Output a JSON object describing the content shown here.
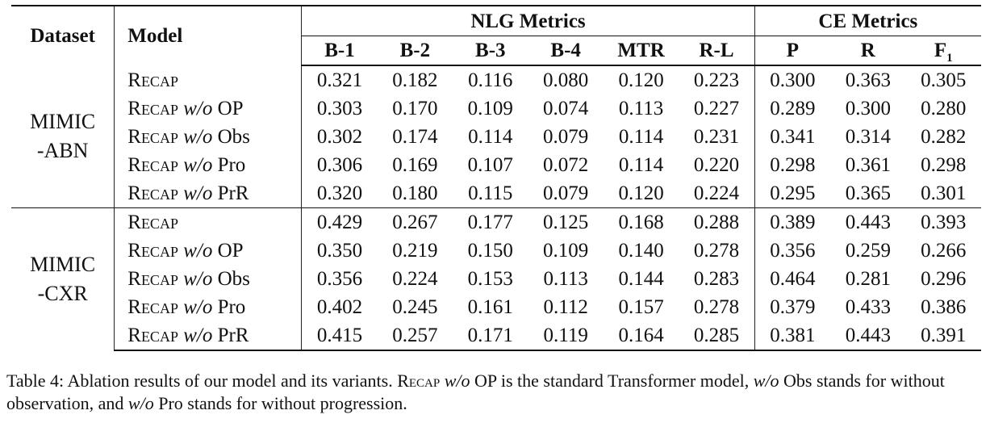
{
  "table": {
    "header": {
      "dataset": "Dataset",
      "model": "Model",
      "nlg_group": "NLG Metrics",
      "ce_group": "CE Metrics",
      "nlg_cols": [
        "B-1",
        "B-2",
        "B-3",
        "B-4",
        "MTR",
        "R-L"
      ],
      "ce_cols": [
        "P",
        "R"
      ],
      "f1_main": "F",
      "f1_sub": "1"
    },
    "groups": [
      {
        "dataset_line1": "MIMIC",
        "dataset_line2": "-ABN",
        "rows": [
          {
            "model": "Recap",
            "variant": "",
            "values": [
              "0.321",
              "0.182",
              "0.116",
              "0.080",
              "0.120",
              "0.223",
              "0.300",
              "0.363",
              "0.305"
            ]
          },
          {
            "model": "Recap",
            "variant": "OP",
            "values": [
              "0.303",
              "0.170",
              "0.109",
              "0.074",
              "0.113",
              "0.227",
              "0.289",
              "0.300",
              "0.280"
            ]
          },
          {
            "model": "Recap",
            "variant": "Obs",
            "values": [
              "0.302",
              "0.174",
              "0.114",
              "0.079",
              "0.114",
              "0.231",
              "0.341",
              "0.314",
              "0.282"
            ]
          },
          {
            "model": "Recap",
            "variant": "Pro",
            "values": [
              "0.306",
              "0.169",
              "0.107",
              "0.072",
              "0.114",
              "0.220",
              "0.298",
              "0.361",
              "0.298"
            ]
          },
          {
            "model": "Recap",
            "variant": "PrR",
            "values": [
              "0.320",
              "0.180",
              "0.115",
              "0.079",
              "0.120",
              "0.224",
              "0.295",
              "0.365",
              "0.301"
            ]
          }
        ]
      },
      {
        "dataset_line1": "MIMIC",
        "dataset_line2": "-CXR",
        "rows": [
          {
            "model": "Recap",
            "variant": "",
            "values": [
              "0.429",
              "0.267",
              "0.177",
              "0.125",
              "0.168",
              "0.288",
              "0.389",
              "0.443",
              "0.393"
            ]
          },
          {
            "model": "Recap",
            "variant": "OP",
            "values": [
              "0.350",
              "0.219",
              "0.150",
              "0.109",
              "0.140",
              "0.278",
              "0.356",
              "0.259",
              "0.266"
            ]
          },
          {
            "model": "Recap",
            "variant": "Obs",
            "values": [
              "0.356",
              "0.224",
              "0.153",
              "0.113",
              "0.144",
              "0.283",
              "0.464",
              "0.281",
              "0.296"
            ]
          },
          {
            "model": "Recap",
            "variant": "Pro",
            "values": [
              "0.402",
              "0.245",
              "0.161",
              "0.112",
              "0.157",
              "0.278",
              "0.379",
              "0.433",
              "0.386"
            ]
          },
          {
            "model": "Recap",
            "variant": "PrR",
            "values": [
              "0.415",
              "0.257",
              "0.171",
              "0.119",
              "0.164",
              "0.285",
              "0.381",
              "0.443",
              "0.391"
            ]
          }
        ]
      }
    ],
    "wo_label": "w/o"
  },
  "caption": {
    "label": "Table 4:",
    "part1": "Ablation results of our model and its variants.",
    "model_name": "Recap",
    "wo1": "w/o",
    "part2": "OP is the standard Transformer model,",
    "wo2": "w/o",
    "part3": "Obs stands for without observation, and",
    "wo3": "w/o",
    "part4": "Pro stands for without progression."
  }
}
